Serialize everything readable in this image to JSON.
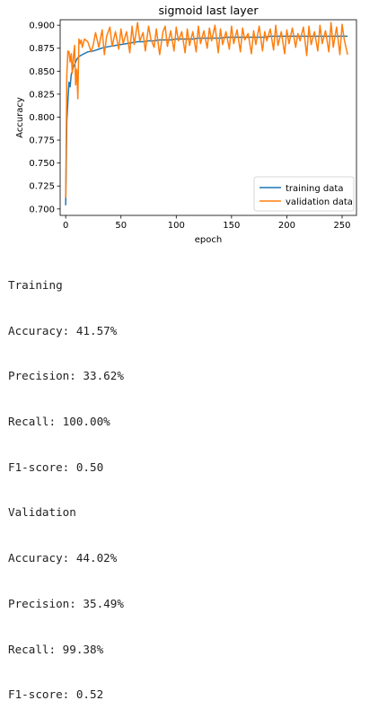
{
  "chart_data": {
    "type": "line",
    "title": "sigmoid last layer",
    "xlabel": "epoch",
    "ylabel": "Accuracy",
    "xlim": [
      -5,
      263
    ],
    "ylim": [
      0.693,
      0.906
    ],
    "xticks": [
      0,
      50,
      100,
      150,
      200,
      250
    ],
    "yticks": [
      0.7,
      0.725,
      0.75,
      0.775,
      0.8,
      0.825,
      0.85,
      0.875,
      0.9
    ],
    "ytick_labels": [
      "0.700",
      "0.725",
      "0.750",
      "0.775",
      "0.800",
      "0.825",
      "0.850",
      "0.875",
      "0.900"
    ],
    "grid": false,
    "legend_position": "lower right",
    "series": [
      {
        "name": "training data",
        "color": "#1f77b4",
        "x": [
          0,
          1,
          2,
          3,
          4,
          5,
          6,
          7,
          8,
          9,
          10,
          12,
          15,
          20,
          25,
          30,
          35,
          40,
          45,
          50,
          55,
          60,
          65,
          70,
          75,
          80,
          85,
          90,
          95,
          100,
          105,
          110,
          115,
          120,
          125,
          130,
          135,
          140,
          145,
          150,
          155,
          160,
          165,
          170,
          175,
          180,
          185,
          190,
          195,
          200,
          205,
          210,
          215,
          220,
          225,
          230,
          235,
          240,
          245,
          250,
          255
        ],
        "values": [
          0.704,
          0.795,
          0.818,
          0.838,
          0.833,
          0.846,
          0.85,
          0.855,
          0.857,
          0.86,
          0.863,
          0.866,
          0.868,
          0.871,
          0.872,
          0.874,
          0.876,
          0.877,
          0.878,
          0.879,
          0.88,
          0.881,
          0.882,
          0.882,
          0.883,
          0.883,
          0.884,
          0.884,
          0.884,
          0.885,
          0.885,
          0.885,
          0.885,
          0.886,
          0.886,
          0.886,
          0.886,
          0.886,
          0.887,
          0.887,
          0.887,
          0.887,
          0.887,
          0.887,
          0.887,
          0.887,
          0.888,
          0.888,
          0.888,
          0.888,
          0.888,
          0.888,
          0.888,
          0.888,
          0.888,
          0.888,
          0.888,
          0.888,
          0.888,
          0.888,
          0.888
        ]
      },
      {
        "name": "validation data",
        "color": "#ff7f0e",
        "x": [
          0,
          1,
          2,
          3,
          4,
          5,
          6,
          7,
          8,
          9,
          10,
          11,
          12,
          13,
          14,
          15,
          17,
          20,
          23,
          25,
          27,
          30,
          33,
          35,
          37,
          40,
          42,
          45,
          48,
          50,
          52,
          55,
          58,
          60,
          62,
          65,
          67,
          70,
          72,
          75,
          77,
          80,
          82,
          85,
          88,
          90,
          92,
          95,
          98,
          100,
          102,
          105,
          108,
          110,
          112,
          115,
          118,
          120,
          122,
          125,
          128,
          130,
          132,
          135,
          138,
          140,
          142,
          145,
          148,
          150,
          152,
          155,
          158,
          160,
          162,
          165,
          168,
          170,
          172,
          175,
          178,
          180,
          182,
          185,
          188,
          190,
          192,
          195,
          198,
          200,
          202,
          205,
          208,
          210,
          212,
          215,
          218,
          220,
          222,
          225,
          228,
          230,
          232,
          235,
          238,
          240,
          242,
          245,
          248,
          250,
          252,
          255
        ],
        "values": [
          0.712,
          0.845,
          0.872,
          0.871,
          0.86,
          0.869,
          0.848,
          0.866,
          0.878,
          0.835,
          0.852,
          0.82,
          0.885,
          0.88,
          0.884,
          0.876,
          0.885,
          0.882,
          0.871,
          0.879,
          0.892,
          0.876,
          0.895,
          0.868,
          0.888,
          0.898,
          0.877,
          0.893,
          0.874,
          0.896,
          0.88,
          0.893,
          0.87,
          0.899,
          0.879,
          0.903,
          0.883,
          0.892,
          0.872,
          0.899,
          0.885,
          0.876,
          0.896,
          0.868,
          0.893,
          0.899,
          0.877,
          0.894,
          0.872,
          0.898,
          0.883,
          0.893,
          0.87,
          0.896,
          0.878,
          0.893,
          0.871,
          0.899,
          0.88,
          0.894,
          0.875,
          0.897,
          0.883,
          0.9,
          0.87,
          0.896,
          0.879,
          0.893,
          0.874,
          0.899,
          0.88,
          0.895,
          0.871,
          0.897,
          0.884,
          0.891,
          0.869,
          0.894,
          0.879,
          0.899,
          0.872,
          0.893,
          0.883,
          0.896,
          0.873,
          0.9,
          0.878,
          0.893,
          0.869,
          0.895,
          0.88,
          0.897,
          0.876,
          0.891,
          0.883,
          0.898,
          0.867,
          0.899,
          0.879,
          0.893,
          0.872,
          0.9,
          0.88,
          0.894,
          0.871,
          0.903,
          0.876,
          0.898,
          0.868,
          0.901,
          0.884,
          0.868
        ]
      }
    ]
  },
  "output_lines": [
    "Training",
    "Accuracy: 41.57%",
    "Precision: 33.62%",
    "Recall: 100.00%",
    "F1-score: 0.50",
    "Validation",
    "Accuracy: 44.02%",
    "Precision: 35.49%",
    "Recall: 99.38%",
    "F1-score: 0.52"
  ]
}
